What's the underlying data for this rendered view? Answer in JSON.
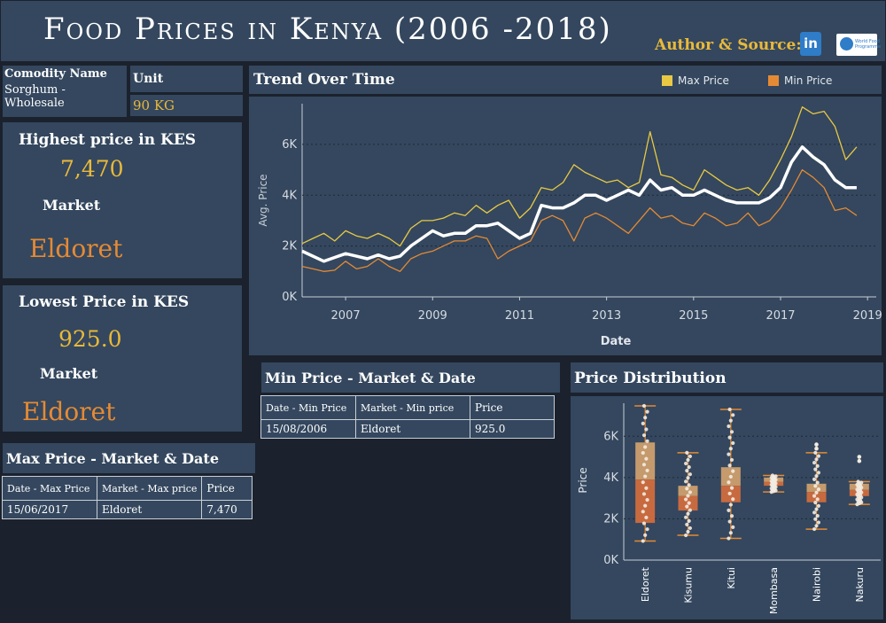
{
  "header": {
    "title": "Food Prices in Kenya (2006 -2018)",
    "author_label": "Author & Source:",
    "linkedin_icon_text": "in",
    "wfp_icon_text": "World Food Programme"
  },
  "commodity": {
    "label": "Comodity Name",
    "value": "Sorghum - Wholesale"
  },
  "unit": {
    "label": "Unit",
    "value": "90 KG"
  },
  "highest": {
    "title": "Highest price in KES",
    "value": "7,470",
    "market_label": "Market",
    "market": "Eldoret"
  },
  "lowest": {
    "title": "Lowest Price in KES",
    "value": "925.0",
    "market_label": "Market",
    "market": "Eldoret"
  },
  "min_table": {
    "title": "Min Price - Market & Date",
    "headers": [
      "Date - Min Price",
      "Market - Min price",
      "Price"
    ],
    "row": [
      "15/08/2006",
      "Eldoret",
      "925.0"
    ]
  },
  "max_table": {
    "title": "Max Price - Market & Date",
    "headers": [
      "Date - Max Price",
      "Market - Max price",
      "Price"
    ],
    "row": [
      "15/06/2017",
      "Eldoret",
      "7,470"
    ]
  },
  "colors": {
    "max": "#e9c944",
    "min": "#e58a34",
    "avg": "#ffffff",
    "panel": "#34475e",
    "bg": "#1b222d"
  },
  "chart_data": [
    {
      "type": "line",
      "title": "Trend Over Time",
      "xlabel": "Date",
      "ylabel": "Avg. Price",
      "xlim": [
        2006,
        2019.2
      ],
      "ylim": [
        0,
        7600
      ],
      "x_ticks": [
        "2007",
        "2009",
        "2011",
        "2013",
        "2015",
        "2017",
        "2019"
      ],
      "x_tick_values": [
        2007,
        2009,
        2011,
        2013,
        2015,
        2017,
        2019
      ],
      "y_ticks": [
        "0K",
        "2K",
        "4K",
        "6K"
      ],
      "y_tick_values": [
        0,
        2000,
        4000,
        6000
      ],
      "legend": [
        "Max Price",
        "Min Price"
      ],
      "x": [
        2006.0,
        2006.25,
        2006.5,
        2006.75,
        2007.0,
        2007.25,
        2007.5,
        2007.75,
        2008.0,
        2008.25,
        2008.5,
        2008.75,
        2009.0,
        2009.25,
        2009.5,
        2009.75,
        2010.0,
        2010.25,
        2010.5,
        2010.75,
        2011.0,
        2011.25,
        2011.5,
        2011.75,
        2012.0,
        2012.25,
        2012.5,
        2012.75,
        2013.0,
        2013.25,
        2013.5,
        2013.75,
        2014.0,
        2014.25,
        2014.5,
        2014.75,
        2015.0,
        2015.25,
        2015.5,
        2015.75,
        2016.0,
        2016.25,
        2016.5,
        2016.75,
        2017.0,
        2017.25,
        2017.5,
        2017.75,
        2018.0,
        2018.25,
        2018.5,
        2018.75
      ],
      "series": [
        {
          "name": "Max Price",
          "values": [
            2100,
            2300,
            2500,
            2200,
            2600,
            2400,
            2300,
            2500,
            2300,
            2000,
            2700,
            3000,
            3000,
            3100,
            3300,
            3200,
            3600,
            3300,
            3600,
            3800,
            3100,
            3500,
            4300,
            4200,
            4500,
            5200,
            4900,
            4700,
            4500,
            4600,
            4300,
            4500,
            6500,
            4800,
            4700,
            4400,
            4200,
            5000,
            4700,
            4400,
            4200,
            4300,
            4000,
            4600,
            5400,
            6300,
            7470,
            7200,
            7300,
            6700,
            5400,
            5900
          ]
        },
        {
          "name": "Min Price",
          "values": [
            1200,
            1100,
            1000,
            1050,
            1400,
            1100,
            1200,
            1500,
            1200,
            1000,
            1500,
            1700,
            1800,
            2000,
            2200,
            2200,
            2400,
            2300,
            1500,
            1800,
            2000,
            2200,
            3000,
            3200,
            3000,
            2200,
            3100,
            3300,
            3100,
            2800,
            2500,
            3000,
            3500,
            3100,
            3200,
            2900,
            2800,
            3300,
            3100,
            2800,
            2900,
            3300,
            2800,
            3000,
            3500,
            4200,
            5000,
            4700,
            4300,
            3400,
            3500,
            3200
          ]
        },
        {
          "name": "Avg Price",
          "values": [
            1800,
            1600,
            1400,
            1550,
            1700,
            1600,
            1500,
            1650,
            1500,
            1600,
            2000,
            2300,
            2600,
            2400,
            2500,
            2500,
            2800,
            2800,
            2900,
            2600,
            2300,
            2500,
            3600,
            3500,
            3500,
            3700,
            4000,
            4000,
            3800,
            4000,
            4200,
            4000,
            4600,
            4200,
            4300,
            4000,
            4000,
            4200,
            4000,
            3800,
            3700,
            3700,
            3700,
            3900,
            4300,
            5300,
            5900,
            5500,
            5200,
            4600,
            4300,
            4300
          ]
        }
      ]
    },
    {
      "type": "box",
      "title": "Price Distribution",
      "ylabel": "Price",
      "ylim": [
        0,
        7600
      ],
      "y_ticks": [
        "0K",
        "2K",
        "4K",
        "6K"
      ],
      "y_tick_values": [
        0,
        2000,
        4000,
        6000
      ],
      "categories": [
        "Eldoret",
        "Kisumu",
        "Kitui",
        "Mombasa",
        "Nairobi",
        "Nakuru"
      ],
      "boxes": [
        {
          "min": 925,
          "q1": 1800,
          "median": 3900,
          "q3": 5700,
          "max": 7470
        },
        {
          "min": 1200,
          "q1": 2400,
          "median": 3100,
          "q3": 3600,
          "max": 5200
        },
        {
          "min": 1050,
          "q1": 2800,
          "median": 3600,
          "q3": 4500,
          "max": 7300
        },
        {
          "min": 3300,
          "q1": 3600,
          "median": 3800,
          "q3": 4000,
          "max": 4100
        },
        {
          "min": 1500,
          "q1": 2800,
          "median": 3300,
          "q3": 3700,
          "max": 5200
        },
        {
          "min": 2700,
          "q1": 3100,
          "median": 3400,
          "q3": 3700,
          "max": 3800
        }
      ],
      "outliers": [
        [],
        [],
        [],
        [],
        [
          5600,
          5400
        ],
        [
          4800,
          5000
        ]
      ]
    }
  ]
}
